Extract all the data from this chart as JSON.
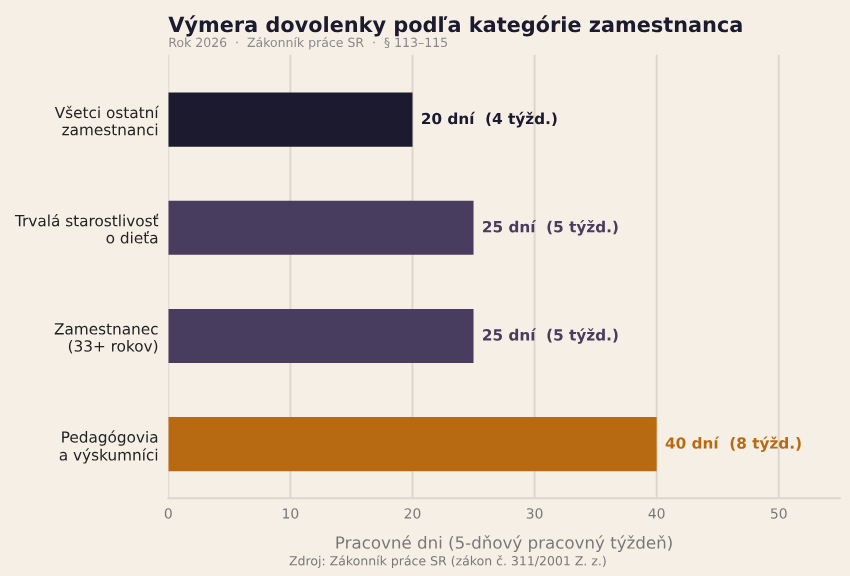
{
  "chart_data": {
    "type": "bar",
    "orientation": "horizontal",
    "title": "Výmera dovolenky podľa kategórie zamestnanca",
    "subtitle": "Rok 2026  ·  Zákonník práce SR  ·  § 113–115",
    "xlabel": "Pracovné dni (5-dňový pracovný týždeň)",
    "categories": [
      "Všetci ostatní\nzamestnanci",
      "Trvalá starostlivosť\no dieťa",
      "Zamestnanec\n(33+ rokov)",
      "Pedagógovia\na výskumníci"
    ],
    "values": [
      20,
      25,
      25,
      40
    ],
    "colors": [
      "#1c1a2e",
      "#483d5f",
      "#483d5f",
      "#b86a12"
    ],
    "value_labels": [
      "20 dní  (4 týžd.)",
      "25 dní  (5 týžd.)",
      "25 dní  (5 týžd.)",
      "40 dní  (8 týžd.)"
    ],
    "xlim": [
      0,
      55
    ],
    "xticks": [
      0,
      10,
      20,
      30,
      40,
      50
    ],
    "grid": "x",
    "annotations": [
      "Zdroj: Zákonník práce SR (zákon č. 311/2001 Z. z.)"
    ]
  }
}
